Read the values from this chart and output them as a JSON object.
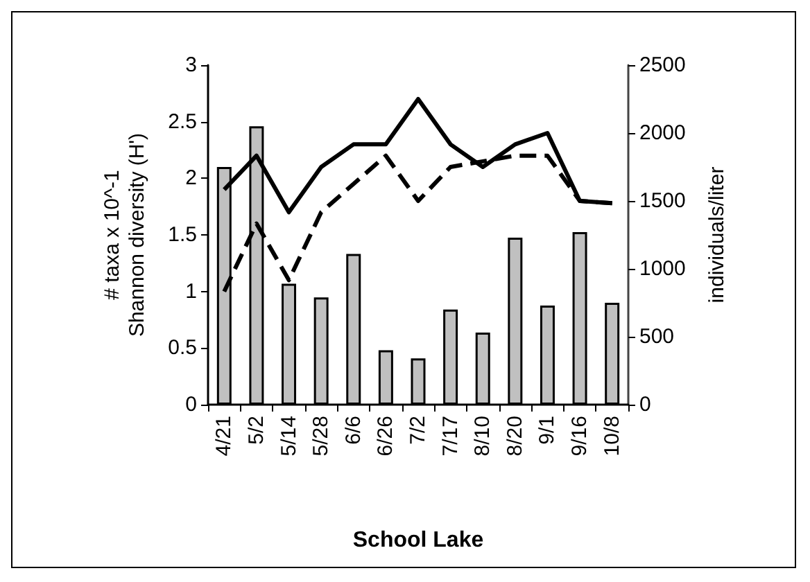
{
  "chart_data": {
    "type": "bar",
    "xlabel": "School Lake",
    "ylabel": "# taxa x 10^-1\nShannon diversity (H')",
    "y2label": "individuals/liter",
    "categories": [
      "4/21",
      "5/2",
      "5/14",
      "5/28",
      "6/6",
      "6/26",
      "7/2",
      "7/17",
      "8/10",
      "8/20",
      "9/1",
      "9/16",
      "10/8"
    ],
    "series": [
      {
        "axis": "y2",
        "color": "#c0c0c0",
        "values": [
          1750,
          2050,
          890,
          790,
          1110,
          400,
          340,
          700,
          530,
          1230,
          730,
          1270,
          750
        ]
      },
      {
        "type": "line",
        "color": "#000000",
        "line_style": "solid",
        "values": [
          1.9,
          2.2,
          1.7,
          2.1,
          2.3,
          2.3,
          2.7,
          2.3,
          2.1,
          2.3,
          2.4,
          1.8,
          1.78
        ]
      },
      {
        "type": "line",
        "color": "#000000",
        "line_style": "dashed",
        "values": [
          1.0,
          1.6,
          1.1,
          1.7,
          1.95,
          2.2,
          1.8,
          2.1,
          2.15,
          2.2,
          2.2,
          1.8,
          1.78
        ]
      }
    ],
    "ylim": [
      0,
      3
    ],
    "yticks": [
      0,
      0.5,
      1,
      1.5,
      2,
      2.5,
      3
    ],
    "y2lim": [
      0,
      2500
    ],
    "y2ticks": [
      0,
      500,
      1000,
      1500,
      2000,
      2500
    ],
    "grid": false,
    "marker": "none"
  }
}
